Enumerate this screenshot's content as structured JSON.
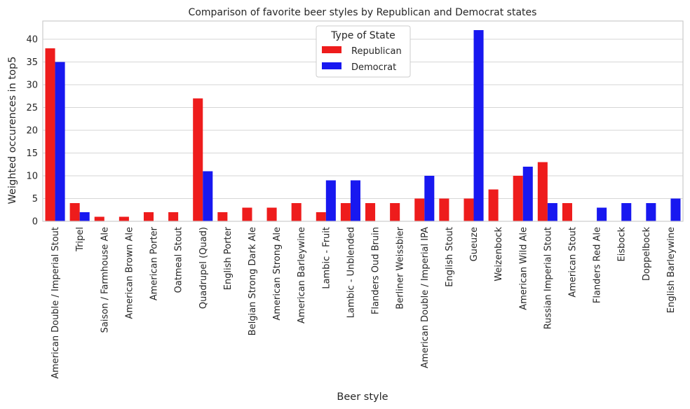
{
  "chart_data": {
    "type": "bar",
    "title": "Comparison of favorite beer styles by Republican and Democrat states",
    "xlabel": "Beer style",
    "ylabel": "Weighted occurences in top5",
    "ylim": [
      0,
      44
    ],
    "yticks": [
      0,
      5,
      10,
      15,
      20,
      25,
      30,
      35,
      40
    ],
    "grid": true,
    "legend": {
      "title": "Type of State",
      "placement": "top-center"
    },
    "categories": [
      "American Double / Imperial Stout",
      "Tripel",
      "Saison / Farmhouse Ale",
      "American Brown Ale",
      "American Porter",
      "Oatmeal Stout",
      "Quadrupel (Quad)",
      "English Porter",
      "Belgian Strong Dark Ale",
      "American Strong Ale",
      "American Barleywine",
      "Lambic - Fruit",
      "Lambic - Unblended",
      "Flanders Oud Bruin",
      "Berliner Weissbier",
      "American Double / Imperial IPA",
      "English Stout",
      "Gueuze",
      "Weizenbock",
      "American Wild Ale",
      "Russian Imperial Stout",
      "American Stout",
      "Flanders Red Ale",
      "Eisbock",
      "Doppelbock",
      "English Barleywine"
    ],
    "series": [
      {
        "name": "Republican",
        "color": "#ee1c1c",
        "values": [
          38,
          4,
          1,
          1,
          2,
          2,
          27,
          2,
          3,
          3,
          4,
          2,
          4,
          4,
          4,
          5,
          5,
          5,
          7,
          10,
          13,
          4,
          0,
          0,
          0,
          0
        ]
      },
      {
        "name": "Democrat",
        "color": "#1818f0",
        "values": [
          35,
          2,
          0,
          0,
          0,
          0,
          11,
          0,
          0,
          0,
          0,
          9,
          9,
          0,
          0,
          10,
          0,
          42,
          0,
          12,
          4,
          0,
          3,
          4,
          4,
          5
        ]
      }
    ]
  }
}
